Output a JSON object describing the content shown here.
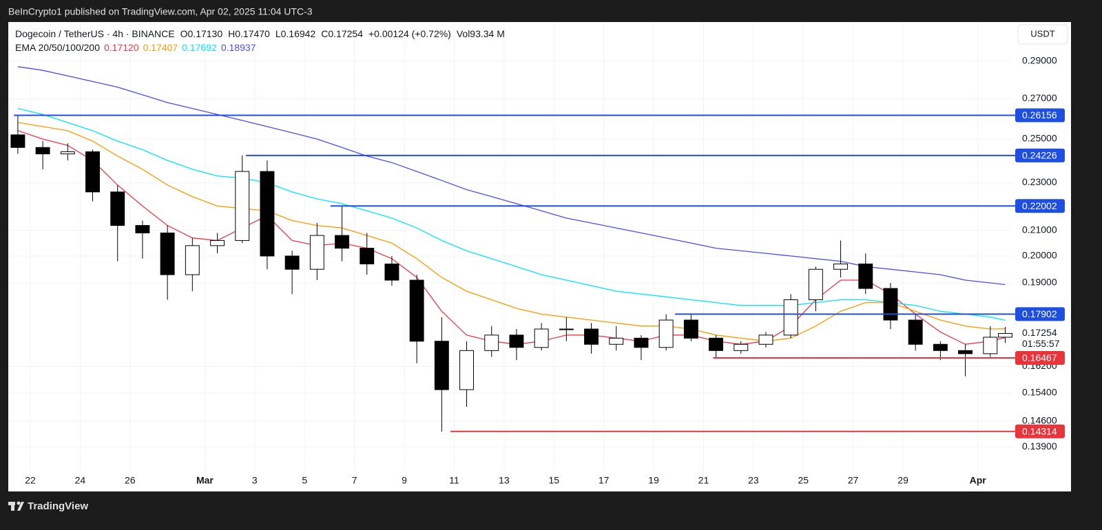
{
  "header": {
    "publisher": "BeInCrypto1 published on TradingView.com, Apr 02, 2025 11:04 UTC-3"
  },
  "footer": {
    "brand": "TradingView"
  },
  "chart_data": {
    "type": "candlestick",
    "symbol": "Dogecoin / TetherUS · 4h · BINANCE",
    "ohlc_text": [
      "O0.17130",
      "H0.17470",
      "L0.16942",
      "C0.17254",
      "+0.00124 (+0.72%)",
      "Vol93.34 M"
    ],
    "ema_legend": "EMA 20/50/100/200",
    "currency": "USDT",
    "countdown": "01:55:57",
    "last_price": 0.17254,
    "up_color": "#ffffff",
    "down_color": "#000000",
    "log": true,
    "grid": true,
    "xlim": [
      -0.884,
      39.39
    ],
    "xticks": [
      {
        "value": 0,
        "label": "22"
      },
      {
        "value": 2,
        "label": "24"
      },
      {
        "value": 4,
        "label": "26"
      },
      {
        "value": 7,
        "label": "Mar"
      },
      {
        "value": 9,
        "label": "3"
      },
      {
        "value": 11,
        "label": "5"
      },
      {
        "value": 13,
        "label": "7"
      },
      {
        "value": 15,
        "label": "9"
      },
      {
        "value": 17,
        "label": "11"
      },
      {
        "value": 19,
        "label": "13"
      },
      {
        "value": 21,
        "label": "15"
      },
      {
        "value": 23,
        "label": "17"
      },
      {
        "value": 25,
        "label": "19"
      },
      {
        "value": 27,
        "label": "21"
      },
      {
        "value": 29,
        "label": "23"
      },
      {
        "value": 31,
        "label": "25"
      },
      {
        "value": 33,
        "label": "27"
      },
      {
        "value": 35,
        "label": "29"
      },
      {
        "value": 38,
        "label": "Apr"
      }
    ],
    "ylim": [
      0.1326,
      0.3125
    ],
    "yticks": [
      {
        "value": 0.139,
        "label": "0.13900"
      },
      {
        "value": 0.146,
        "label": "0.14600"
      },
      {
        "value": 0.154,
        "label": "0.15400"
      },
      {
        "value": 0.162,
        "label": "0.16200"
      },
      {
        "value": 0.19,
        "label": "0.19000"
      },
      {
        "value": 0.2,
        "label": "0.20000"
      },
      {
        "value": 0.21,
        "label": "0.21000"
      },
      {
        "value": 0.23,
        "label": "0.23000"
      },
      {
        "value": 0.25,
        "label": "0.25000"
      },
      {
        "value": 0.27,
        "label": "0.27000"
      },
      {
        "value": 0.29,
        "label": "0.29000"
      }
    ],
    "x": [
      -0.5,
      0.5,
      1.5,
      2.5,
      3.5,
      4.5,
      5.5,
      6.5,
      7.5,
      8.5,
      9.5,
      10.5,
      11.5,
      12.5,
      13.5,
      14.5,
      15.5,
      16.5,
      17.5,
      18.5,
      19.5,
      20.5,
      21.5,
      22.5,
      23.5,
      24.5,
      25.5,
      26.5,
      27.5,
      28.5,
      29.5,
      30.5,
      31.5,
      32.5,
      33.5,
      34.5,
      35.5,
      36.5,
      37.5,
      38.5,
      39.1
    ],
    "open": [
      0.252,
      0.246,
      0.243,
      0.244,
      0.226,
      0.212,
      0.209,
      0.193,
      0.204,
      0.206,
      0.235,
      0.2,
      0.195,
      0.208,
      0.203,
      0.197,
      0.191,
      0.17,
      0.155,
      0.167,
      0.172,
      0.168,
      0.174,
      0.174,
      0.169,
      0.171,
      0.168,
      0.177,
      0.171,
      0.167,
      0.169,
      0.172,
      0.184,
      0.195,
      0.197,
      0.188,
      0.177,
      0.169,
      0.167,
      0.166,
      0.1713
    ],
    "high": [
      0.2616,
      0.249,
      0.248,
      0.245,
      0.229,
      0.214,
      0.212,
      0.207,
      0.209,
      0.2423,
      0.24,
      0.202,
      0.213,
      0.22,
      0.209,
      0.2,
      0.193,
      0.178,
      0.17,
      0.175,
      0.174,
      0.176,
      0.178,
      0.176,
      0.175,
      0.172,
      0.179,
      0.179,
      0.172,
      0.17,
      0.173,
      0.186,
      0.196,
      0.206,
      0.201,
      0.19,
      0.179,
      0.17,
      0.169,
      0.175,
      0.1747
    ],
    "low": [
      0.243,
      0.236,
      0.24,
      0.222,
      0.198,
      0.199,
      0.184,
      0.187,
      0.201,
      0.205,
      0.195,
      0.186,
      0.191,
      0.198,
      0.193,
      0.189,
      0.163,
      0.1431,
      0.15,
      0.165,
      0.164,
      0.167,
      0.17,
      0.166,
      0.167,
      0.164,
      0.167,
      0.17,
      0.1647,
      0.166,
      0.168,
      0.171,
      0.18,
      0.192,
      0.186,
      0.174,
      0.167,
      0.164,
      0.159,
      0.165,
      0.16942
    ],
    "close": [
      0.246,
      0.243,
      0.244,
      0.226,
      0.212,
      0.209,
      0.193,
      0.204,
      0.206,
      0.235,
      0.2,
      0.195,
      0.208,
      0.203,
      0.197,
      0.191,
      0.17,
      0.155,
      0.167,
      0.172,
      0.168,
      0.174,
      0.174,
      0.169,
      0.171,
      0.168,
      0.177,
      0.171,
      0.167,
      0.169,
      0.172,
      0.184,
      0.195,
      0.197,
      0.188,
      0.177,
      0.169,
      0.167,
      0.166,
      0.1713,
      0.17254
    ],
    "series": [
      {
        "legend_label": "0.17120",
        "color": "#f23645",
        "values": [
          0.254,
          0.25,
          0.247,
          0.24,
          0.229,
          0.22,
          0.212,
          0.207,
          0.206,
          0.211,
          0.216,
          0.206,
          0.204,
          0.205,
          0.203,
          0.199,
          0.192,
          0.18,
          0.172,
          0.17,
          0.169,
          0.17,
          0.172,
          0.172,
          0.171,
          0.17,
          0.172,
          0.172,
          0.17,
          0.169,
          0.17,
          0.175,
          0.184,
          0.191,
          0.191,
          0.186,
          0.179,
          0.173,
          0.169,
          0.17,
          0.1712
        ]
      },
      {
        "legend_label": "0.17407",
        "color": "#ff9800",
        "values": [
          0.258,
          0.256,
          0.254,
          0.249,
          0.242,
          0.236,
          0.229,
          0.224,
          0.22,
          0.219,
          0.218,
          0.214,
          0.212,
          0.211,
          0.208,
          0.205,
          0.199,
          0.192,
          0.187,
          0.184,
          0.181,
          0.179,
          0.178,
          0.177,
          0.176,
          0.175,
          0.175,
          0.174,
          0.172,
          0.171,
          0.17,
          0.171,
          0.175,
          0.18,
          0.183,
          0.183,
          0.18,
          0.177,
          0.175,
          0.174,
          0.17407
        ]
      },
      {
        "legend_label": "0.17692",
        "color": "#00e5ff",
        "values": [
          0.265,
          0.262,
          0.258,
          0.254,
          0.249,
          0.245,
          0.24,
          0.236,
          0.233,
          0.232,
          0.23,
          0.226,
          0.223,
          0.221,
          0.218,
          0.215,
          0.211,
          0.206,
          0.202,
          0.199,
          0.196,
          0.193,
          0.191,
          0.189,
          0.187,
          0.186,
          0.185,
          0.184,
          0.183,
          0.182,
          0.182,
          0.182,
          0.183,
          0.184,
          0.184,
          0.183,
          0.182,
          0.18,
          0.179,
          0.178,
          0.17692
        ]
      },
      {
        "legend_label": "0.18937",
        "color": "#4c4cf0",
        "values": [
          0.287,
          0.285,
          0.282,
          0.279,
          0.276,
          0.272,
          0.268,
          0.265,
          0.262,
          0.259,
          0.256,
          0.253,
          0.25,
          0.246,
          0.242,
          0.239,
          0.235,
          0.231,
          0.227,
          0.224,
          0.221,
          0.218,
          0.215,
          0.213,
          0.211,
          0.209,
          0.207,
          0.205,
          0.203,
          0.202,
          0.201,
          0.2,
          0.199,
          0.198,
          0.196,
          0.195,
          0.194,
          0.193,
          0.191,
          0.19,
          0.18937
        ]
      }
    ],
    "levels": [
      {
        "value": 0.26156,
        "start": -0.66,
        "color": "#1e4fe0"
      },
      {
        "value": 0.24226,
        "start": 8.65,
        "color": "#1e4fe0"
      },
      {
        "value": 0.22002,
        "start": 12.04,
        "color": "#1e4fe0"
      },
      {
        "value": 0.17902,
        "start": 25.86,
        "color": "#1e4fe0"
      },
      {
        "value": 0.16467,
        "start": 27.38,
        "color": "#e8353b"
      },
      {
        "value": 0.14314,
        "start": 16.85,
        "color": "#e8353b"
      }
    ]
  }
}
